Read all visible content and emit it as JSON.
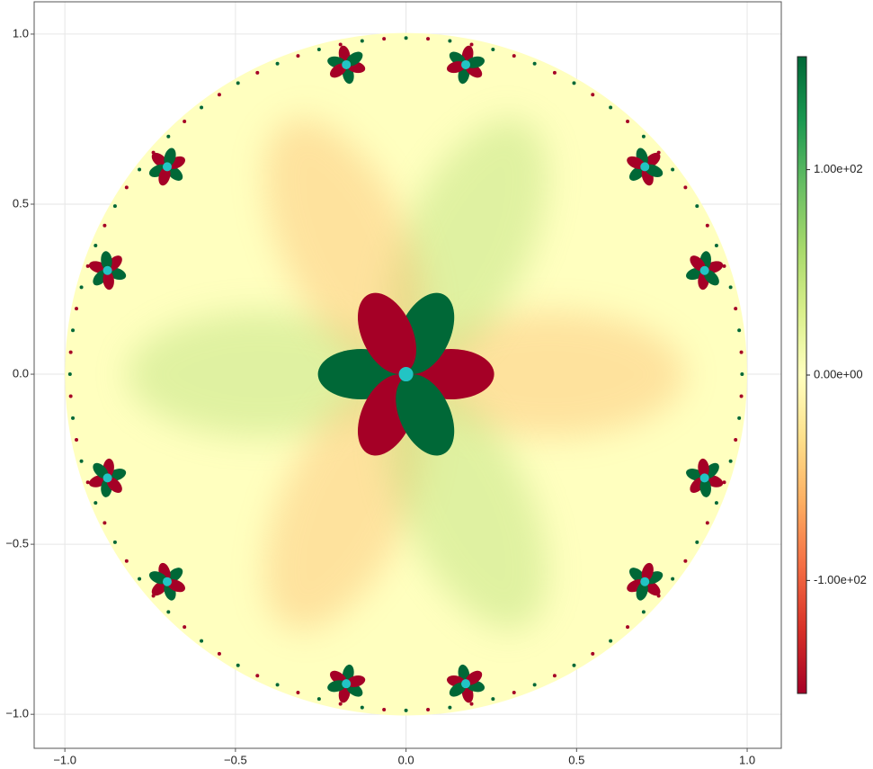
{
  "chart_data": {
    "type": "scatter",
    "x": [
      0,
      0.175,
      0.7,
      0.875,
      -0.175,
      -0.7,
      -0.875,
      -0.875,
      -0.7,
      -0.175,
      0.175,
      0.7,
      0.875
    ],
    "y": [
      0,
      0.91,
      0.61,
      0.305,
      0.91,
      0.61,
      0.305,
      -0.305,
      -0.61,
      -0.91,
      -0.91,
      -0.61,
      -0.305
    ],
    "color": "#22c4c4",
    "xlim": [
      -1.09,
      1.1
    ],
    "ylim": [
      -1.1,
      1.095
    ],
    "xticks": [
      {
        "value": -1,
        "label": "−1.0"
      },
      {
        "value": -0.5,
        "label": "−0.5"
      },
      {
        "value": 0,
        "label": "0.0"
      },
      {
        "value": 0.5,
        "label": "0.5"
      },
      {
        "value": 1,
        "label": "1.0"
      }
    ],
    "yticks": [
      {
        "value": -1,
        "label": "−1.0"
      },
      {
        "value": -0.5,
        "label": "−0.5"
      },
      {
        "value": 0,
        "label": "0.0"
      },
      {
        "value": 0.5,
        "label": "0.5"
      },
      {
        "value": 1,
        "label": "1.0"
      }
    ],
    "grid": true,
    "colorbar": {
      "lim": [
        -155,
        155
      ],
      "ticks": [
        {
          "value": 100,
          "label": "1.00e+02"
        },
        {
          "value": 0,
          "label": "0.00e+00"
        },
        {
          "value": -100,
          "label": "-1.00e+02"
        }
      ],
      "colormap": [
        "#a50026",
        "#d73027",
        "#f46d43",
        "#fdae61",
        "#fee08b",
        "#ffffbf",
        "#d9ef8b",
        "#a6d96a",
        "#66bd63",
        "#1a9850",
        "#006837"
      ]
    }
  }
}
